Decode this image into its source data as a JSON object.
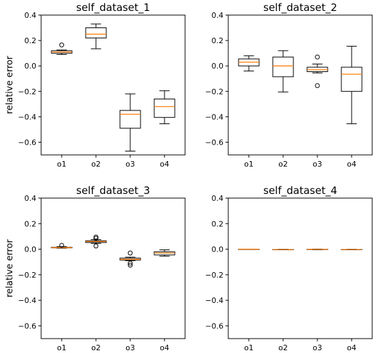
{
  "chart_data": [
    {
      "type": "box",
      "title": "self_dataset_1",
      "ylabel": "relative error",
      "categories": [
        "o1",
        "o2",
        "o3",
        "o4"
      ],
      "ylim": [
        -0.7,
        0.4
      ],
      "yticks": [
        "0.4",
        "0.2",
        "0.0",
        "−0.2",
        "−0.4",
        "−0.6"
      ],
      "ytick_values": [
        0.4,
        0.2,
        0.0,
        -0.2,
        -0.4,
        -0.6
      ],
      "boxes": [
        {
          "whislo": 0.09,
          "q1": 0.1,
          "med": 0.11,
          "q3": 0.12,
          "whishi": 0.125,
          "fliers": [
            0.165
          ]
        },
        {
          "whislo": 0.135,
          "q1": 0.22,
          "med": 0.25,
          "q3": 0.3,
          "whishi": 0.33,
          "fliers": []
        },
        {
          "whislo": -0.67,
          "q1": -0.49,
          "med": -0.38,
          "q3": -0.35,
          "whishi": -0.22,
          "fliers": []
        },
        {
          "whislo": -0.455,
          "q1": -0.405,
          "med": -0.32,
          "q3": -0.26,
          "whishi": -0.195,
          "fliers": []
        }
      ]
    },
    {
      "type": "box",
      "title": "self_dataset_2",
      "ylabel": "",
      "categories": [
        "o1",
        "o2",
        "o3",
        "o4"
      ],
      "ylim": [
        -0.7,
        0.4
      ],
      "yticks": [
        "0.4",
        "0.2",
        "0.0",
        "−0.2",
        "−0.4",
        "−0.6"
      ],
      "ytick_values": [
        0.4,
        0.2,
        0.0,
        -0.2,
        -0.4,
        -0.6
      ],
      "boxes": [
        {
          "whislo": -0.04,
          "q1": 0.0,
          "med": 0.03,
          "q3": 0.055,
          "whishi": 0.08,
          "fliers": []
        },
        {
          "whislo": -0.205,
          "q1": -0.085,
          "med": 0.0,
          "q3": 0.07,
          "whishi": 0.12,
          "fliers": []
        },
        {
          "whislo": -0.055,
          "q1": -0.045,
          "med": -0.03,
          "q3": -0.01,
          "whishi": 0.015,
          "fliers": [
            0.07,
            -0.155
          ]
        },
        {
          "whislo": -0.455,
          "q1": -0.2,
          "med": -0.065,
          "q3": -0.01,
          "whishi": 0.155,
          "fliers": []
        }
      ]
    },
    {
      "type": "box",
      "title": "self_dataset_3",
      "ylabel": "relative error",
      "categories": [
        "o1",
        "o2",
        "o3",
        "o4"
      ],
      "ylim": [
        -0.7,
        0.4
      ],
      "yticks": [
        "0.4",
        "0.2",
        "0.0",
        "−0.2",
        "−0.4",
        "−0.6"
      ],
      "ytick_values": [
        0.4,
        0.2,
        0.0,
        -0.2,
        -0.4,
        -0.6
      ],
      "boxes": [
        {
          "whislo": 0.008,
          "q1": 0.01,
          "med": 0.012,
          "q3": 0.015,
          "whishi": 0.02,
          "fliers": [
            0.03
          ]
        },
        {
          "whislo": 0.045,
          "q1": 0.052,
          "med": 0.06,
          "q3": 0.066,
          "whishi": 0.075,
          "fliers": [
            0.095,
            0.085,
            0.025
          ]
        },
        {
          "whislo": -0.09,
          "q1": -0.085,
          "med": -0.08,
          "q3": -0.07,
          "whishi": -0.062,
          "fliers": [
            -0.03,
            -0.11,
            -0.125
          ]
        },
        {
          "whislo": -0.055,
          "q1": -0.045,
          "med": -0.03,
          "q3": -0.02,
          "whishi": -0.005,
          "fliers": []
        }
      ]
    },
    {
      "type": "box",
      "title": "self_dataset_4",
      "ylabel": "",
      "categories": [
        "o1",
        "o2",
        "o3",
        "o4"
      ],
      "ylim": [
        -0.7,
        0.4
      ],
      "yticks": [
        "0.4",
        "0.2",
        "0.0",
        "−0.2",
        "−0.4",
        "−0.6"
      ],
      "ytick_values": [
        0.4,
        0.2,
        0.0,
        -0.2,
        -0.4,
        -0.6
      ],
      "boxes": [
        {
          "whislo": 0.0,
          "q1": 0.0,
          "med": 0.0,
          "q3": 0.0,
          "whishi": 0.0,
          "fliers": []
        },
        {
          "whislo": -0.005,
          "q1": -0.004,
          "med": -0.003,
          "q3": -0.002,
          "whishi": -0.001,
          "fliers": []
        },
        {
          "whislo": -0.004,
          "q1": -0.003,
          "med": -0.001,
          "q3": 0.0,
          "whishi": 0.001,
          "fliers": []
        },
        {
          "whislo": -0.005,
          "q1": -0.004,
          "med": -0.003,
          "q3": -0.002,
          "whishi": -0.001,
          "fliers": []
        }
      ]
    }
  ],
  "colors": {
    "box": "#000000",
    "median": "#ff7f0e",
    "background": "#ffffff"
  }
}
